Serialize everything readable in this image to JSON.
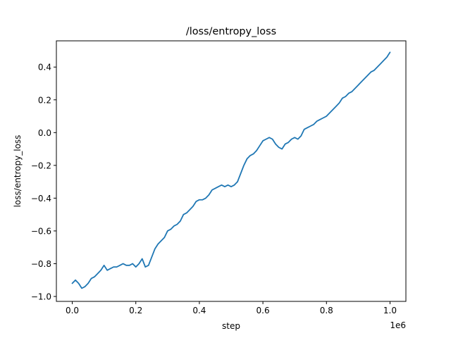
{
  "chart_data": {
    "type": "line",
    "title": "/loss/entropy_loss",
    "xlabel": "step",
    "ylabel": "loss/entropy_loss",
    "x_offset_label": "1e6",
    "xlim": [
      -50000,
      1050000
    ],
    "ylim": [
      -1.03,
      0.56
    ],
    "xticks": [
      0,
      200000,
      400000,
      600000,
      800000,
      1000000
    ],
    "xtick_labels": [
      "0.0",
      "0.2",
      "0.4",
      "0.6",
      "0.8",
      "1.0"
    ],
    "yticks": [
      -1.0,
      -0.8,
      -0.6,
      -0.4,
      -0.2,
      0.0,
      0.2,
      0.4
    ],
    "ytick_labels": [
      "−1.0",
      "−0.8",
      "−0.6",
      "−0.4",
      "−0.2",
      "0.0",
      "0.2",
      "0.4"
    ],
    "grid": false,
    "series": [
      {
        "color": "#1f77b4",
        "x": [
          0,
          10000,
          20000,
          30000,
          40000,
          50000,
          60000,
          70000,
          80000,
          90000,
          100000,
          110000,
          120000,
          130000,
          140000,
          150000,
          160000,
          170000,
          180000,
          190000,
          200000,
          210000,
          220000,
          230000,
          240000,
          250000,
          260000,
          270000,
          280000,
          290000,
          300000,
          310000,
          320000,
          330000,
          340000,
          350000,
          360000,
          370000,
          380000,
          390000,
          400000,
          410000,
          420000,
          430000,
          440000,
          450000,
          460000,
          470000,
          480000,
          490000,
          500000,
          510000,
          520000,
          530000,
          540000,
          550000,
          560000,
          570000,
          580000,
          590000,
          600000,
          610000,
          620000,
          630000,
          640000,
          650000,
          660000,
          670000,
          680000,
          690000,
          700000,
          710000,
          720000,
          730000,
          740000,
          750000,
          760000,
          770000,
          780000,
          790000,
          800000,
          810000,
          820000,
          830000,
          840000,
          850000,
          860000,
          870000,
          880000,
          890000,
          900000,
          910000,
          920000,
          930000,
          940000,
          950000,
          960000,
          970000,
          980000,
          990000,
          1000000
        ],
        "y": [
          -0.92,
          -0.9,
          -0.92,
          -0.95,
          -0.94,
          -0.92,
          -0.89,
          -0.88,
          -0.86,
          -0.84,
          -0.81,
          -0.84,
          -0.83,
          -0.82,
          -0.82,
          -0.81,
          -0.8,
          -0.81,
          -0.81,
          -0.8,
          -0.82,
          -0.8,
          -0.77,
          -0.82,
          -0.81,
          -0.76,
          -0.71,
          -0.68,
          -0.66,
          -0.64,
          -0.6,
          -0.59,
          -0.57,
          -0.56,
          -0.54,
          -0.5,
          -0.49,
          -0.47,
          -0.45,
          -0.42,
          -0.41,
          -0.41,
          -0.4,
          -0.38,
          -0.35,
          -0.34,
          -0.33,
          -0.32,
          -0.33,
          -0.32,
          -0.33,
          -0.32,
          -0.3,
          -0.25,
          -0.2,
          -0.16,
          -0.14,
          -0.13,
          -0.11,
          -0.08,
          -0.05,
          -0.04,
          -0.03,
          -0.04,
          -0.07,
          -0.09,
          -0.1,
          -0.07,
          -0.06,
          -0.04,
          -0.03,
          -0.04,
          -0.02,
          0.02,
          0.03,
          0.04,
          0.05,
          0.07,
          0.08,
          0.09,
          0.1,
          0.12,
          0.14,
          0.16,
          0.18,
          0.21,
          0.22,
          0.24,
          0.25,
          0.27,
          0.29,
          0.31,
          0.33,
          0.35,
          0.37,
          0.38,
          0.4,
          0.42,
          0.44,
          0.46,
          0.49
        ]
      }
    ]
  }
}
